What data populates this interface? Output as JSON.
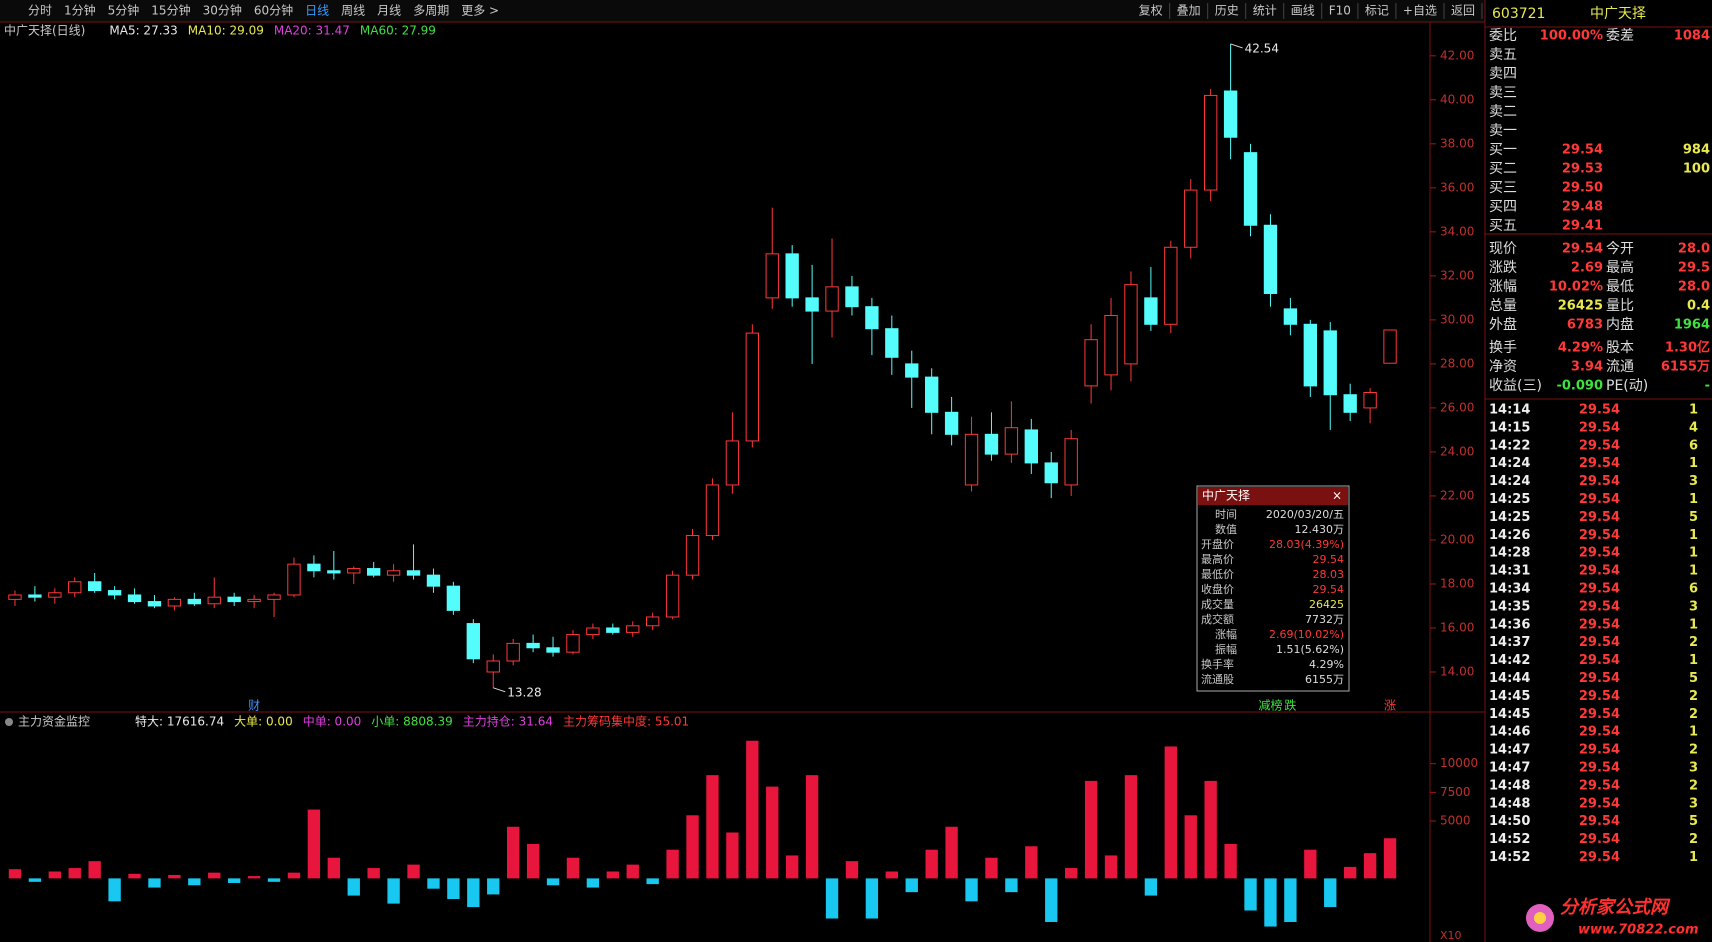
{
  "toolbar": {
    "left": [
      "分时",
      "1分钟",
      "5分钟",
      "15分钟",
      "30分钟",
      "60分钟",
      "日线",
      "周线",
      "月线",
      "多周期",
      "更多 >"
    ],
    "active": 6,
    "right": [
      "复权",
      "叠加",
      "历史",
      "统计",
      "画线",
      "F10",
      "标记",
      "+自选",
      "返回"
    ]
  },
  "chart_data": {
    "type": "candlestick",
    "title": "中广天择(日线)",
    "ma_labels": [
      {
        "text": "MA5: 27.33",
        "color": "#e8e8e8"
      },
      {
        "text": "MA10: 29.09",
        "color": "#e8e850"
      },
      {
        "text": "MA20: 31.47",
        "color": "#e040e0"
      },
      {
        "text": "MA60: 27.99",
        "color": "#40e040"
      }
    ],
    "up_color": "#ff3838",
    "down_color": "#54fcfc",
    "ylim": [
      12.5,
      43.4
    ],
    "yticks": [
      {
        "value": 14,
        "label": "14.00"
      },
      {
        "value": 16,
        "label": "16.00"
      },
      {
        "value": 18,
        "label": "18.00"
      },
      {
        "value": 20,
        "label": "20.00"
      },
      {
        "value": 22,
        "label": "22.00"
      },
      {
        "value": 24,
        "label": "24.00"
      },
      {
        "value": 26,
        "label": "26.00"
      },
      {
        "value": 28,
        "label": "28.00"
      },
      {
        "value": 30,
        "label": "30.00"
      },
      {
        "value": 32,
        "label": "32.00"
      },
      {
        "value": 34,
        "label": "34.00"
      },
      {
        "value": 36,
        "label": "36.00"
      },
      {
        "value": 38,
        "label": "38.00"
      },
      {
        "value": 40,
        "label": "40.00"
      },
      {
        "value": 42,
        "label": "42.00"
      }
    ],
    "candles": [
      [
        17.3,
        17.7,
        17.0,
        17.5
      ],
      [
        17.5,
        17.9,
        17.2,
        17.4
      ],
      [
        17.4,
        17.8,
        17.1,
        17.6
      ],
      [
        17.6,
        18.3,
        17.4,
        18.1
      ],
      [
        18.1,
        18.5,
        17.6,
        17.7
      ],
      [
        17.7,
        17.9,
        17.3,
        17.5
      ],
      [
        17.5,
        17.8,
        17.1,
        17.2
      ],
      [
        17.2,
        17.5,
        16.9,
        17.0
      ],
      [
        17.0,
        17.4,
        16.8,
        17.3
      ],
      [
        17.3,
        17.6,
        17.0,
        17.1
      ],
      [
        17.1,
        18.3,
        16.9,
        17.4
      ],
      [
        17.4,
        17.6,
        17.0,
        17.2
      ],
      [
        17.2,
        17.5,
        16.9,
        17.3
      ],
      [
        17.3,
        17.6,
        16.5,
        17.5
      ],
      [
        17.5,
        19.2,
        17.4,
        18.9
      ],
      [
        18.9,
        19.3,
        18.3,
        18.6
      ],
      [
        18.6,
        19.5,
        18.2,
        18.5
      ],
      [
        18.5,
        18.8,
        18.0,
        18.7
      ],
      [
        18.7,
        19.0,
        18.3,
        18.4
      ],
      [
        18.4,
        18.9,
        18.1,
        18.6
      ],
      [
        18.6,
        19.8,
        18.2,
        18.4
      ],
      [
        18.4,
        18.7,
        17.6,
        17.9
      ],
      [
        17.9,
        18.1,
        16.6,
        16.8
      ],
      [
        16.2,
        16.4,
        14.4,
        14.6
      ],
      [
        14.0,
        14.8,
        13.28,
        14.5
      ],
      [
        14.5,
        15.5,
        14.3,
        15.3
      ],
      [
        15.3,
        15.7,
        14.9,
        15.1
      ],
      [
        15.1,
        15.6,
        14.7,
        14.9
      ],
      [
        14.9,
        15.9,
        14.8,
        15.7
      ],
      [
        15.7,
        16.2,
        15.5,
        16.0
      ],
      [
        16.0,
        16.2,
        15.7,
        15.8
      ],
      [
        15.8,
        16.3,
        15.6,
        16.1
      ],
      [
        16.1,
        16.7,
        15.9,
        16.5
      ],
      [
        16.5,
        18.6,
        16.4,
        18.4
      ],
      [
        18.4,
        20.5,
        18.2,
        20.2
      ],
      [
        20.2,
        22.8,
        20.0,
        22.5
      ],
      [
        22.5,
        25.8,
        22.1,
        24.5
      ],
      [
        24.5,
        29.8,
        24.2,
        29.4
      ],
      [
        31.0,
        35.1,
        30.5,
        33.0
      ],
      [
        33.0,
        33.4,
        30.6,
        31.0
      ],
      [
        31.0,
        32.5,
        28.0,
        30.4
      ],
      [
        30.4,
        33.7,
        29.2,
        31.5
      ],
      [
        31.5,
        32.0,
        30.2,
        30.6
      ],
      [
        30.6,
        31.0,
        28.4,
        29.6
      ],
      [
        29.6,
        30.2,
        27.5,
        28.3
      ],
      [
        28.0,
        28.6,
        26.0,
        27.4
      ],
      [
        27.4,
        27.8,
        24.8,
        25.8
      ],
      [
        25.8,
        26.5,
        24.3,
        24.8
      ],
      [
        22.5,
        25.6,
        22.2,
        24.8
      ],
      [
        24.8,
        25.8,
        23.6,
        23.9
      ],
      [
        23.9,
        26.3,
        23.5,
        25.1
      ],
      [
        25.0,
        25.5,
        23.0,
        23.5
      ],
      [
        23.5,
        24.0,
        21.9,
        22.6
      ],
      [
        22.5,
        25.0,
        22.0,
        24.6
      ],
      [
        27.0,
        29.8,
        26.2,
        29.1
      ],
      [
        27.5,
        31.0,
        26.8,
        30.2
      ],
      [
        28.0,
        32.2,
        27.2,
        31.6
      ],
      [
        31.0,
        32.4,
        29.5,
        29.8
      ],
      [
        29.8,
        33.6,
        29.4,
        33.3
      ],
      [
        33.3,
        36.4,
        32.8,
        35.9
      ],
      [
        35.9,
        40.5,
        35.4,
        40.2
      ],
      [
        40.4,
        42.54,
        37.3,
        38.3
      ],
      [
        37.6,
        38.0,
        33.8,
        34.3
      ],
      [
        34.3,
        34.8,
        30.6,
        31.2
      ],
      [
        30.5,
        31.0,
        29.3,
        29.8
      ],
      [
        29.8,
        30.0,
        26.5,
        27.0
      ],
      [
        29.5,
        29.9,
        25.0,
        26.6
      ],
      [
        26.6,
        27.1,
        25.4,
        25.8
      ],
      [
        26.0,
        26.9,
        25.3,
        26.7
      ],
      [
        28.03,
        29.54,
        28.03,
        29.54
      ]
    ],
    "extremes": [
      {
        "candle": 61,
        "part": 1
      },
      {
        "candle": 24,
        "part": 2
      }
    ],
    "markers": [
      {
        "text": "财",
        "candle": 12,
        "color": "#4090ff"
      },
      {
        "text": "减榜",
        "candle": 63,
        "color": "#40e040"
      },
      {
        "text": "跌",
        "candle": 64,
        "color": "#40e040"
      },
      {
        "text": "涨",
        "candle": 69,
        "color": "#ff3838"
      }
    ],
    "indicator": {
      "title": "主力资金监控",
      "labels": [
        {
          "text": "特大: 17616.74",
          "color": "#e8e8e8"
        },
        {
          "text": "大单: 0.00",
          "color": "#e8e850"
        },
        {
          "text": "中单: 0.00",
          "color": "#e040e0"
        },
        {
          "text": "小单: 8808.39",
          "color": "#40e040"
        },
        {
          "text": "主力持仓: 31.64",
          "color": "#e040e0"
        },
        {
          "text": "主力筹码集中度: 55.01",
          "color": "#ff3838"
        }
      ],
      "ylim": [
        -4500,
        12500
      ],
      "yticks": [
        5000,
        7500,
        10000
      ],
      "unit": "X10",
      "values": [
        800,
        -300,
        600,
        900,
        1500,
        -2000,
        400,
        -800,
        300,
        -600,
        500,
        -400,
        200,
        -300,
        500,
        6000,
        1800,
        -1500,
        900,
        -2200,
        1200,
        -900,
        -1800,
        -2500,
        -1400,
        4500,
        3000,
        -600,
        1800,
        -800,
        600,
        1200,
        -500,
        2500,
        5500,
        9000,
        4000,
        12000,
        8000,
        2000,
        9000,
        -3500,
        1500,
        -3500,
        600,
        -1200,
        2500,
        4500,
        -2000,
        1800,
        -1200,
        2800,
        -3800,
        900,
        8500,
        2000,
        9000,
        -1500,
        11500,
        5500,
        8500,
        3000,
        -2800,
        -4200,
        -3800,
        2500,
        -2500,
        1000,
        2200,
        3500
      ]
    }
  },
  "popup": {
    "title": "中广天择",
    "rows": [
      [
        "时间",
        "2020/03/20/五"
      ],
      [
        "数值",
        "12.430万"
      ],
      [
        "开盘价",
        "28.03(4.39%)"
      ],
      [
        "最高价",
        "29.54"
      ],
      [
        "最低价",
        "28.03"
      ],
      [
        "收盘价",
        "29.54"
      ],
      [
        "成交量",
        "26425"
      ],
      [
        "成交额",
        "7732万"
      ],
      [
        "涨幅",
        "2.69(10.02%)"
      ],
      [
        "振幅",
        "1.51(5.62%)"
      ],
      [
        "换手率",
        "4.29%"
      ],
      [
        "流通股",
        "6155万"
      ]
    ]
  },
  "quote": {
    "code": "603721",
    "name": "中广天择",
    "rows": [
      [
        "委比",
        "100.00%",
        "委差",
        "1084"
      ],
      [
        "卖五",
        "",
        "",
        ""
      ],
      [
        "卖四",
        "",
        "",
        ""
      ],
      [
        "卖三",
        "",
        "",
        ""
      ],
      [
        "卖二",
        "",
        "",
        ""
      ],
      [
        "卖一",
        "",
        "",
        ""
      ],
      [
        "买一",
        "29.54",
        "",
        "984"
      ],
      [
        "买二",
        "29.53",
        "",
        "100"
      ],
      [
        "买三",
        "29.50",
        "",
        ""
      ],
      [
        "买四",
        "29.48",
        "",
        ""
      ],
      [
        "买五",
        "29.41",
        "",
        ""
      ],
      [
        "现价",
        "29.54",
        "今开",
        "28.0"
      ],
      [
        "涨跌",
        "2.69",
        "最高",
        "29.5"
      ],
      [
        "涨幅",
        "10.02%",
        "最低",
        "28.0"
      ],
      [
        "总量",
        "26425",
        "量比",
        "0.4"
      ],
      [
        "外盘",
        "6783",
        "内盘",
        "1964"
      ],
      [
        "换手",
        "4.29%",
        "股本",
        "1.30亿"
      ],
      [
        "净资",
        "3.94",
        "流通",
        "6155万"
      ],
      [
        "收益(三)",
        "-0.090",
        "PE(动)",
        "-"
      ]
    ],
    "ticks": [
      [
        "14:14",
        "29.54",
        "1"
      ],
      [
        "14:15",
        "29.54",
        "4"
      ],
      [
        "14:22",
        "29.54",
        "6"
      ],
      [
        "14:24",
        "29.54",
        "1"
      ],
      [
        "14:24",
        "29.54",
        "3"
      ],
      [
        "14:25",
        "29.54",
        "1"
      ],
      [
        "14:25",
        "29.54",
        "5"
      ],
      [
        "14:26",
        "29.54",
        "1"
      ],
      [
        "14:28",
        "29.54",
        "1"
      ],
      [
        "14:31",
        "29.54",
        "1"
      ],
      [
        "14:34",
        "29.54",
        "6"
      ],
      [
        "14:35",
        "29.54",
        "3"
      ],
      [
        "14:36",
        "29.54",
        "1"
      ],
      [
        "14:37",
        "29.54",
        "2"
      ],
      [
        "14:42",
        "29.54",
        "1"
      ],
      [
        "14:44",
        "29.54",
        "5"
      ],
      [
        "14:45",
        "29.54",
        "2"
      ],
      [
        "14:45",
        "29.54",
        "2"
      ],
      [
        "14:46",
        "29.54",
        "1"
      ],
      [
        "14:47",
        "29.54",
        "2"
      ],
      [
        "14:47",
        "29.54",
        "3"
      ],
      [
        "14:48",
        "29.54",
        "2"
      ],
      [
        "14:48",
        "29.54",
        "3"
      ],
      [
        "14:50",
        "29.54",
        "5"
      ],
      [
        "14:52",
        "29.54",
        "2"
      ],
      [
        "14:52",
        "29.54",
        "1"
      ]
    ]
  },
  "watermark": {
    "name": "分析家公式网",
    "url": "www.70822.com"
  }
}
